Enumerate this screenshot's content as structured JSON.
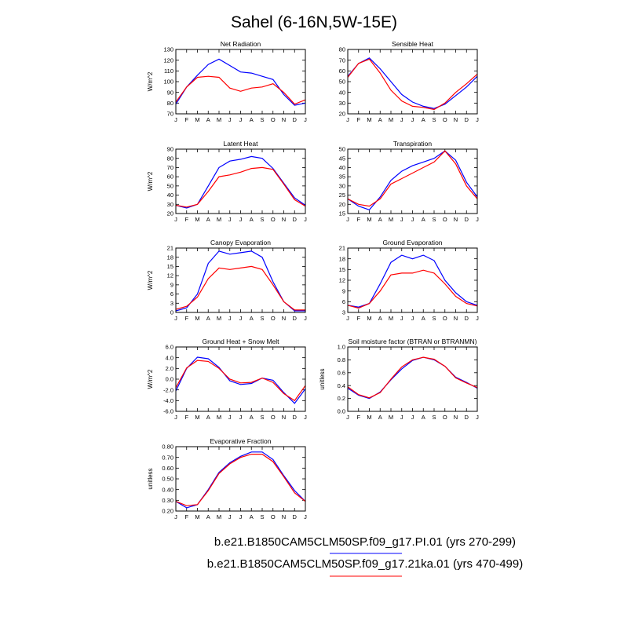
{
  "figure": {
    "title": "Sahel (6-16N,5W-15E)",
    "months": [
      "J",
      "F",
      "M",
      "A",
      "M",
      "J",
      "J",
      "A",
      "S",
      "O",
      "N",
      "D",
      "J"
    ],
    "series_colors": {
      "pi": "#0000ff",
      "ka21": "#ff0000"
    }
  },
  "legend": [
    {
      "label": "b.e21.B1850CAM5CLM50SP.f09_g17.PI.01 (yrs 270-299)",
      "color": "#0000ff"
    },
    {
      "label": "b.e21.B1850CAM5CLM50SP.f09_g17.21ka.01 (yrs 470-499)",
      "color": "#ff0000"
    }
  ],
  "chart_data": [
    {
      "type": "line",
      "title": "Net Radiation",
      "ylabel": "W/m^2",
      "ylim": [
        70,
        130
      ],
      "yticks": [
        70,
        80,
        90,
        100,
        110,
        120,
        130
      ],
      "ytick_labels": [
        "70",
        "80",
        "90",
        "100",
        "110",
        "120",
        "130"
      ],
      "series": [
        {
          "name": "b.e21.B1850CAM5CLM50SP.f09_g17.PI.01 (yrs 270-299)",
          "values": [
            79,
            95,
            106,
            116,
            121,
            115,
            109,
            108,
            105,
            102,
            88,
            78,
            80
          ]
        },
        {
          "name": "b.e21.B1850CAM5CLM50SP.f09_g17.21ka.01 (yrs 470-499)",
          "values": [
            81,
            95,
            104,
            105,
            104,
            94,
            91,
            94,
            95,
            98,
            90,
            79,
            83
          ]
        }
      ]
    },
    {
      "type": "line",
      "title": "Sensible Heat",
      "ylabel": "",
      "ylim": [
        20,
        80
      ],
      "yticks": [
        20,
        30,
        40,
        50,
        60,
        70,
        80
      ],
      "ytick_labels": [
        "20",
        "30",
        "40",
        "50",
        "60",
        "70",
        "80"
      ],
      "series": [
        {
          "name": "b.e21.B1850CAM5CLM50SP.f09_g17.PI.01 (yrs 270-299)",
          "values": [
            55,
            67,
            72,
            62,
            50,
            38,
            31,
            27,
            25,
            29,
            37,
            45,
            55
          ]
        },
        {
          "name": "b.e21.B1850CAM5CLM50SP.f09_g17.21ka.01 (yrs 470-499)",
          "values": [
            54,
            67,
            71,
            58,
            42,
            32,
            27,
            26,
            24,
            30,
            40,
            48,
            57
          ]
        }
      ]
    },
    {
      "type": "line",
      "title": "Latent Heat",
      "ylabel": "W/m^2",
      "ylim": [
        20,
        90
      ],
      "yticks": [
        20,
        30,
        40,
        50,
        60,
        70,
        80,
        90
      ],
      "ytick_labels": [
        "20",
        "30",
        "40",
        "50",
        "60",
        "70",
        "80",
        "90"
      ],
      "series": [
        {
          "name": "b.e21.B1850CAM5CLM50SP.f09_g17.PI.01 (yrs 270-299)",
          "values": [
            29,
            26,
            30,
            50,
            70,
            77,
            79,
            82,
            80,
            69,
            53,
            37,
            29
          ]
        },
        {
          "name": "b.e21.B1850CAM5CLM50SP.f09_g17.21ka.01 (yrs 470-499)",
          "values": [
            29,
            27,
            30,
            44,
            60,
            62,
            65,
            69,
            70,
            68,
            52,
            35,
            28
          ]
        }
      ]
    },
    {
      "type": "line",
      "title": "Transpiration",
      "ylabel": "",
      "ylim": [
        15,
        50
      ],
      "yticks": [
        15,
        20,
        25,
        30,
        35,
        40,
        45,
        50
      ],
      "ytick_labels": [
        "15",
        "20",
        "25",
        "30",
        "35",
        "40",
        "45",
        "50"
      ],
      "series": [
        {
          "name": "b.e21.B1850CAM5CLM50SP.f09_g17.PI.01 (yrs 270-299)",
          "values": [
            23,
            19,
            17,
            24,
            33,
            38,
            41,
            43,
            45,
            49,
            44,
            32,
            24
          ]
        },
        {
          "name": "b.e21.B1850CAM5CLM50SP.f09_g17.21ka.01 (yrs 470-499)",
          "values": [
            23,
            20,
            19,
            23,
            31,
            34,
            37,
            40,
            43,
            49,
            42,
            30,
            23
          ]
        }
      ]
    },
    {
      "type": "line",
      "title": "Canopy Evaporation",
      "ylabel": "W/m^2",
      "ylim": [
        0,
        21
      ],
      "yticks": [
        0,
        3,
        6,
        9,
        12,
        15,
        18,
        21
      ],
      "ytick_labels": [
        "0",
        "3",
        "6",
        "9",
        "12",
        "15",
        "18",
        "21"
      ],
      "series": [
        {
          "name": "b.e21.B1850CAM5CLM50SP.f09_g17.PI.01 (yrs 270-299)",
          "values": [
            0.5,
            1.5,
            6,
            16,
            20,
            19,
            19.5,
            20,
            18,
            10,
            3.5,
            0.5,
            0.5
          ]
        },
        {
          "name": "b.e21.B1850CAM5CLM50SP.f09_g17.21ka.01 (yrs 470-499)",
          "values": [
            1,
            2,
            5,
            11,
            14.5,
            14,
            14.5,
            15,
            14,
            9,
            3.5,
            0.8,
            0.8
          ]
        }
      ]
    },
    {
      "type": "line",
      "title": "Ground Evaporation",
      "ylabel": "",
      "ylim": [
        3,
        21
      ],
      "yticks": [
        3,
        6,
        9,
        12,
        15,
        18,
        21
      ],
      "ytick_labels": [
        "3",
        "6",
        "9",
        "12",
        "15",
        "18",
        "21"
      ],
      "series": [
        {
          "name": "b.e21.B1850CAM5CLM50SP.f09_g17.PI.01 (yrs 270-299)",
          "values": [
            5,
            4.5,
            5.5,
            11,
            17,
            19,
            18,
            19,
            17.5,
            12,
            8.5,
            6,
            5
          ]
        },
        {
          "name": "b.e21.B1850CAM5CLM50SP.f09_g17.21ka.01 (yrs 470-499)",
          "values": [
            5,
            4.2,
            5.5,
            9,
            13.5,
            14,
            14,
            14.8,
            14,
            11,
            7.5,
            5.5,
            4.8
          ]
        }
      ]
    },
    {
      "type": "line",
      "title": "Ground Heat + Snow Melt",
      "ylabel": "W/m^2",
      "ylim": [
        -6,
        6
      ],
      "yticks": [
        -6,
        -4,
        -2,
        0,
        2,
        4,
        6
      ],
      "ytick_labels": [
        "-6.0",
        "-4.0",
        "-2.0",
        "0.0",
        "2.0",
        "4.0",
        "6.0"
      ],
      "series": [
        {
          "name": "b.e21.B1850CAM5CLM50SP.f09_g17.PI.01 (yrs 270-299)",
          "values": [
            -2.2,
            2,
            4.1,
            3.8,
            2.2,
            -0.3,
            -1,
            -0.8,
            0.2,
            -0.2,
            -2.5,
            -4.5,
            -1.8
          ]
        },
        {
          "name": "b.e21.B1850CAM5CLM50SP.f09_g17.21ka.01 (yrs 470-499)",
          "values": [
            -1.6,
            2.1,
            3.5,
            3.3,
            2,
            0,
            -0.7,
            -0.6,
            0.2,
            -0.6,
            -2.7,
            -4,
            -1.2
          ]
        }
      ]
    },
    {
      "type": "line",
      "title": "Soil moisture factor (BTRAN or BTRANMN)",
      "ylabel": "unitless",
      "ylim": [
        0,
        1
      ],
      "yticks": [
        0,
        0.2,
        0.4,
        0.6,
        0.8,
        1
      ],
      "ytick_labels": [
        "0.0",
        "0.2",
        "0.4",
        "0.6",
        "0.8",
        "1.0"
      ],
      "series": [
        {
          "name": "b.e21.B1850CAM5CLM50SP.f09_g17.PI.01 (yrs 270-299)",
          "values": [
            0.36,
            0.25,
            0.2,
            0.3,
            0.49,
            0.66,
            0.79,
            0.84,
            0.8,
            0.7,
            0.53,
            0.45,
            0.36
          ]
        },
        {
          "name": "b.e21.B1850CAM5CLM50SP.f09_g17.21ka.01 (yrs 470-499)",
          "values": [
            0.38,
            0.26,
            0.21,
            0.29,
            0.5,
            0.69,
            0.8,
            0.84,
            0.81,
            0.7,
            0.52,
            0.44,
            0.37
          ]
        }
      ]
    },
    {
      "type": "line",
      "title": "Evaporative Fraction",
      "ylabel": "unitless",
      "ylim": [
        0.2,
        0.8
      ],
      "yticks": [
        0.2,
        0.3,
        0.4,
        0.5,
        0.6,
        0.7,
        0.8
      ],
      "ytick_labels": [
        "0.20",
        "0.30",
        "0.40",
        "0.50",
        "0.60",
        "0.70",
        "0.80"
      ],
      "series": [
        {
          "name": "b.e21.B1850CAM5CLM50SP.f09_g17.PI.01 (yrs 270-299)",
          "values": [
            0.29,
            0.23,
            0.26,
            0.4,
            0.56,
            0.65,
            0.71,
            0.75,
            0.75,
            0.68,
            0.53,
            0.39,
            0.29
          ]
        },
        {
          "name": "b.e21.B1850CAM5CLM50SP.f09_g17.21ka.01 (yrs 470-499)",
          "values": [
            0.29,
            0.25,
            0.26,
            0.39,
            0.55,
            0.64,
            0.7,
            0.73,
            0.73,
            0.66,
            0.52,
            0.37,
            0.29
          ]
        }
      ]
    }
  ]
}
